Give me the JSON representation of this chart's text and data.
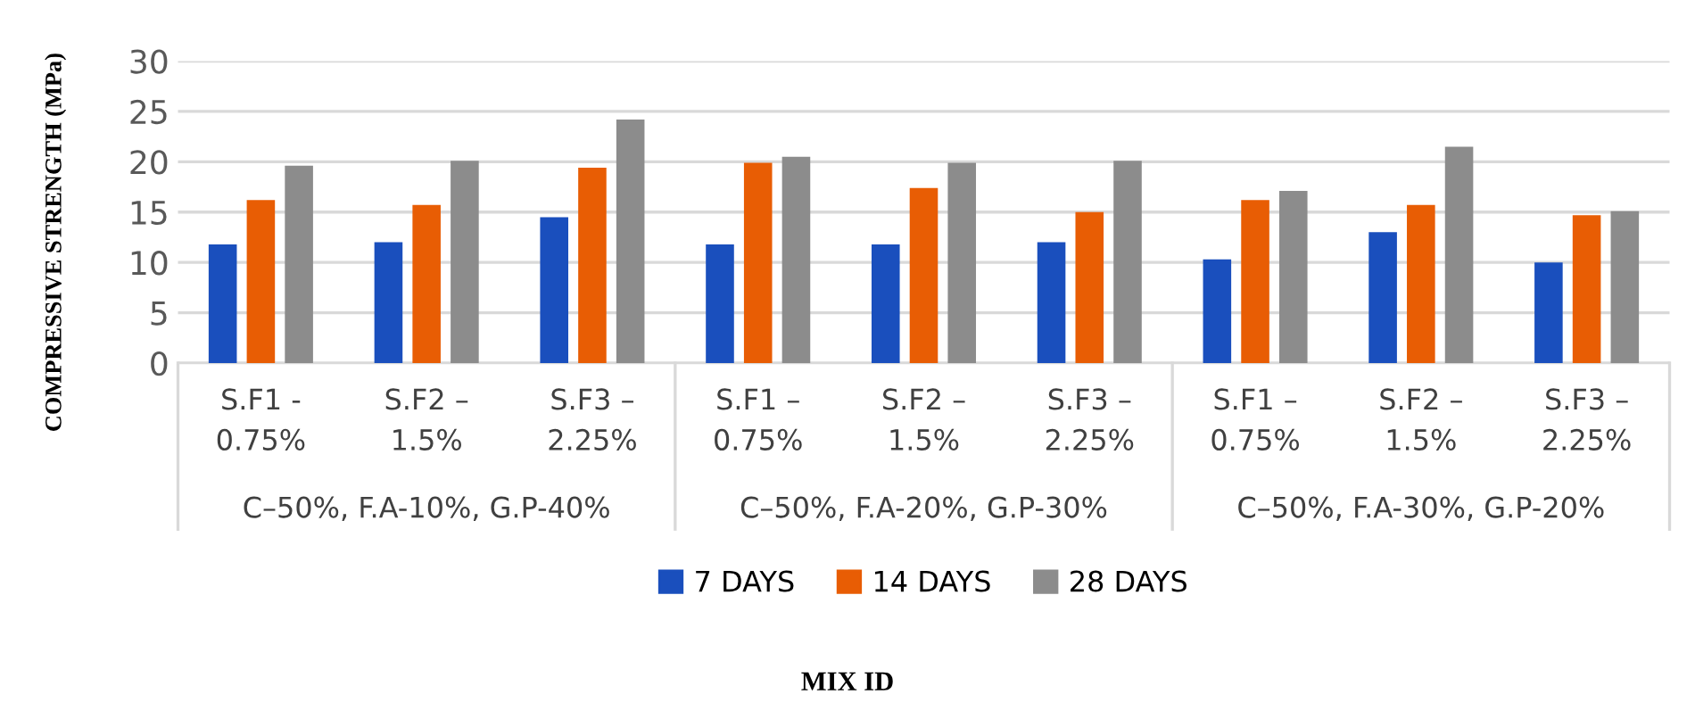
{
  "chart_data": {
    "type": "bar",
    "ylabel": "COMPRESSIVE STRENGTH (MPa)",
    "categories": [
      "S.F1 -\n0.75%",
      "S.F2 –\n1.5%",
      "S.F3 –\n2.25%",
      "S.F1 –\n0.75%",
      "S.F2 –\n1.5%",
      "S.F3 –\n2.25%",
      "S.F1 –\n0.75%",
      "S.F2 –\n1.5%",
      "S.F3 –\n2.25%"
    ],
    "annotations": [
      "C–50%, F.A-10%, G.P-40%",
      "C–50%, F.A-20%, G.P-30%",
      "C–50%, F.A-30%, G.P-20%",
      "MIX ID"
    ],
    "series": [
      {
        "name": "7 DAYS",
        "color": "#1a4fbd",
        "values": [
          11.8,
          12.0,
          14.5,
          11.8,
          11.8,
          12.0,
          10.3,
          13.0,
          10.0
        ]
      },
      {
        "name": "14 DAYS",
        "color": "#e85d04",
        "values": [
          16.2,
          15.7,
          19.4,
          19.9,
          17.4,
          15.0,
          16.2,
          15.7,
          14.7
        ]
      },
      {
        "name": "28 DAYS",
        "color": "#8c8c8c",
        "values": [
          19.6,
          20.1,
          24.2,
          20.5,
          19.9,
          20.1,
          17.1,
          21.5,
          15.1
        ]
      }
    ],
    "ylim": [
      0,
      30
    ],
    "yticks": [
      0,
      5,
      10,
      15,
      20,
      25,
      30
    ],
    "grid": "y",
    "legend": "bottom"
  }
}
